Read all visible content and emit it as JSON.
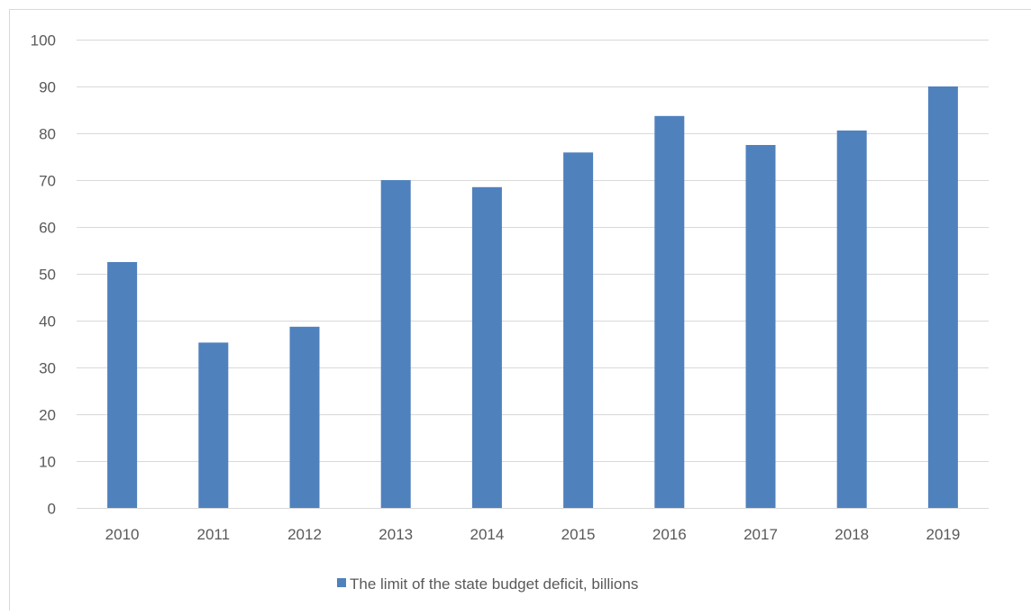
{
  "chart_data": {
    "type": "bar",
    "categories": [
      "2010",
      "2011",
      "2012",
      "2013",
      "2014",
      "2015",
      "2016",
      "2017",
      "2018",
      "2019"
    ],
    "series": [
      {
        "name": "The limit of the state budget deficit, billions",
        "values": [
          52.5,
          35.3,
          38.7,
          70.0,
          68.5,
          75.9,
          83.7,
          77.5,
          80.6,
          90.0
        ],
        "color": "#4f81bd"
      }
    ],
    "ylim": [
      0,
      100
    ],
    "yticks": [
      "0",
      "10",
      "20",
      "30",
      "40",
      "50",
      "60",
      "70",
      "80",
      "90",
      "100"
    ],
    "grid": true,
    "legend": "bottom",
    "gridColor": "#d9d9d9",
    "textColor": "#595959"
  }
}
